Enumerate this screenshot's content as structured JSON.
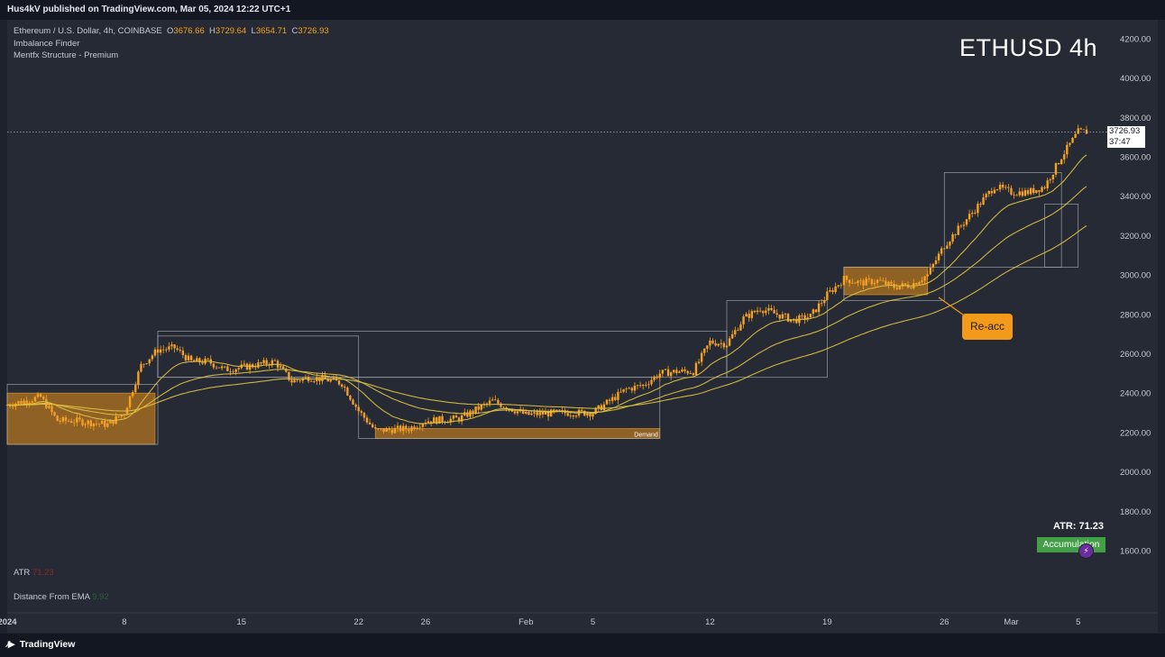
{
  "header": {
    "publish_line": "Hus4kV published on TradingView.com, Mar 05, 2024 12:22 UTC+1"
  },
  "legend": {
    "symbol_line": "Ethereum / U.S. Dollar, 4h, COINBASE",
    "o_label": "O",
    "o_value": "3676.66",
    "h_label": "H",
    "h_value": "3729.64",
    "l_label": "L",
    "l_value": "3654.71",
    "c_label": "C",
    "c_value": "3726.93",
    "indicator_1": "Imbalance Finder",
    "indicator_2": "Mentfx Structure - Premium"
  },
  "watermark": "ETHUSD 4h",
  "indicators": {
    "atr_label": "ATR",
    "atr_value": "71.23",
    "ema_label": "Distance From EMA",
    "ema_value": "9.92"
  },
  "overlay": {
    "atr_text": "ATR: 71.23",
    "accumulation": "Accumulation",
    "callout": "Re-acc",
    "demand_label": "Demand"
  },
  "price_tag": {
    "price": "3726.93",
    "countdown": "37:47"
  },
  "footer": {
    "logo_text": "TradingView"
  },
  "colors": {
    "background": "#252a35",
    "candle": "#f7a21b",
    "zone": "#b8771f",
    "ema": "#e3c341",
    "accumulation": "#43a047"
  },
  "chart_data": {
    "type": "candlestick",
    "symbol": "ETHUSD",
    "timeframe": "4h",
    "y_ticks": [
      "1600.00",
      "1800.00",
      "2000.00",
      "2200.00",
      "2400.00",
      "2600.00",
      "2800.00",
      "3000.00",
      "3200.00",
      "3400.00",
      "3600.00",
      "3800.00",
      "4000.00",
      "4200.00"
    ],
    "x_ticks": [
      "2024",
      "8",
      "15",
      "22",
      "26",
      "Feb",
      "5",
      "12",
      "19",
      "26",
      "Mar",
      "5"
    ],
    "ylim": [
      1460,
      4260
    ],
    "last_price": 3726.93,
    "price_path": [
      [
        "2024-01-01",
        2340
      ],
      [
        "2024-01-03",
        2380
      ],
      [
        "2024-01-04",
        2260
      ],
      [
        "2024-01-05",
        2260
      ],
      [
        "2024-01-07",
        2240
      ],
      [
        "2024-01-08",
        2300
      ],
      [
        "2024-01-09",
        2540
      ],
      [
        "2024-01-10",
        2620
      ],
      [
        "2024-01-11",
        2630
      ],
      [
        "2024-01-12",
        2560
      ],
      [
        "2024-01-13",
        2560
      ],
      [
        "2024-01-14",
        2520
      ],
      [
        "2024-01-15",
        2530
      ],
      [
        "2024-01-17",
        2560
      ],
      [
        "2024-01-18",
        2460
      ],
      [
        "2024-01-19",
        2480
      ],
      [
        "2024-01-20",
        2470
      ],
      [
        "2024-01-21",
        2450
      ],
      [
        "2024-01-22",
        2310
      ],
      [
        "2024-01-23",
        2210
      ],
      [
        "2024-01-25",
        2220
      ],
      [
        "2024-01-26",
        2260
      ],
      [
        "2024-01-28",
        2270
      ],
      [
        "2024-01-30",
        2360
      ],
      [
        "2024-02-01",
        2290
      ],
      [
        "2024-02-03",
        2300
      ],
      [
        "2024-02-05",
        2300
      ],
      [
        "2024-02-06",
        2360
      ],
      [
        "2024-02-07",
        2420
      ],
      [
        "2024-02-08",
        2440
      ],
      [
        "2024-02-09",
        2500
      ],
      [
        "2024-02-10",
        2510
      ],
      [
        "2024-02-11",
        2510
      ],
      [
        "2024-02-12",
        2660
      ],
      [
        "2024-02-13",
        2650
      ],
      [
        "2024-02-14",
        2780
      ],
      [
        "2024-02-15",
        2830
      ],
      [
        "2024-02-16",
        2800
      ],
      [
        "2024-02-17",
        2770
      ],
      [
        "2024-02-18",
        2790
      ],
      [
        "2024-02-19",
        2900
      ],
      [
        "2024-02-20",
        2980
      ],
      [
        "2024-02-21",
        2960
      ],
      [
        "2024-02-22",
        2970
      ],
      [
        "2024-02-23",
        2940
      ],
      [
        "2024-02-24",
        2950
      ],
      [
        "2024-02-25",
        3000
      ],
      [
        "2024-02-26",
        3150
      ],
      [
        "2024-02-27",
        3250
      ],
      [
        "2024-02-28",
        3350
      ],
      [
        "2024-02-29",
        3450
      ],
      [
        "2024-03-01",
        3420
      ],
      [
        "2024-03-02",
        3420
      ],
      [
        "2024-03-03",
        3450
      ],
      [
        "2024-03-04",
        3600
      ],
      [
        "2024-03-05",
        3726.93
      ]
    ],
    "zones": [
      {
        "from": "2024-01-01",
        "to": "2024-01-08",
        "low": 2140,
        "high": 2400
      },
      {
        "from": "2024-01-23",
        "to": "2024-02-09",
        "low": 2170,
        "high": 2220,
        "label": "Demand"
      },
      {
        "from": "2024-02-20",
        "to": "2024-02-25",
        "low": 2900,
        "high": 3040
      }
    ],
    "grid": false
  }
}
